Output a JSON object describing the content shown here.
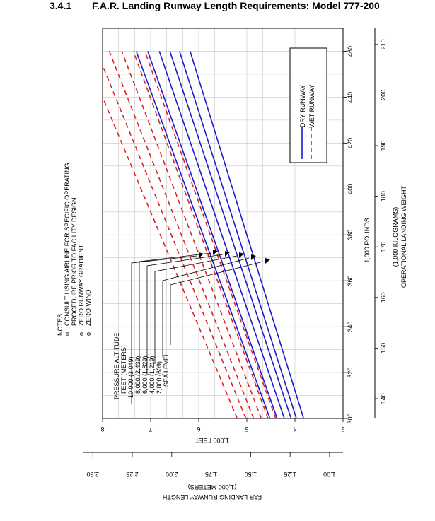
{
  "header": {
    "section_number": "3.4.1",
    "title": "F.A.R. Landing Runway Length Requirements: Model 777-200"
  },
  "notes": {
    "heading": "NOTES:",
    "items": [
      "CONSULT USING AIRLINE FOR SPECIFIC OPERATING",
      "PROCEDURE PRIOR TO FACILITY DESIGN",
      "ZERO RUNWAY GRADIENT",
      "ZERO WIND"
    ],
    "bullet": "o"
  },
  "legend": {
    "entries": [
      {
        "label": "DRY RUNWAY",
        "color": "#1a1ad0",
        "style": "solid"
      },
      {
        "label": "WET RUNWAY",
        "color": "#e02020",
        "style": "dashed"
      }
    ]
  },
  "altitude_legend": {
    "line1": "PRESSURE ALTITUDE",
    "line2": "FEET (METERS)",
    "rows": [
      "10,000 (3,049)",
      "8,000  (2,439)",
      "6,000  (1,829)",
      "4,000  (1,219)",
      "2,000   (609)",
      "SEA LEVEL"
    ]
  },
  "axes": {
    "weight_lb_label": "1,000 POUNDS",
    "weight_kg_label": "(1,000 KILOGRAMS)",
    "weight_title": "OPERATIONAL LANDING WEIGHT",
    "length_ft_label": "1,000 FEET",
    "length_m_label": "(1,000 METERS)",
    "length_title": "FAR LANDING RUNWAY LENGTH",
    "lb_ticks": [
      "300",
      "320",
      "340",
      "360",
      "380",
      "400",
      "420",
      "440",
      "460"
    ],
    "kg_ticks": [
      "140",
      "150",
      "160",
      "170",
      "180",
      "190",
      "200",
      "210"
    ],
    "ft_ticks": [
      "3",
      "4",
      "5",
      "6",
      "7",
      "8"
    ],
    "m_ticks": [
      "1.00",
      "1.25",
      "1.50",
      "1.75",
      "2.00",
      "2.25",
      "2.50"
    ]
  },
  "chart_data": {
    "type": "line",
    "title": "F.A.R. Landing Runway Length Requirements: Model 777-200",
    "xlabel": "OPERATIONAL LANDING WEIGHT (1,000 POUNDS)",
    "ylabel": "FAR LANDING RUNWAY LENGTH (1,000 FEET)",
    "xlim": [
      300,
      470
    ],
    "ylim": [
      3,
      8
    ],
    "grid": true,
    "legend_position": "top-right",
    "series": [
      {
        "name": "DRY RUNWAY SEA LEVEL",
        "condition": "dry",
        "x": [
          300,
          460
        ],
        "y": [
          3.82,
          6.18
        ]
      },
      {
        "name": "DRY RUNWAY 2,000 (609)",
        "condition": "dry",
        "x": [
          300,
          460
        ],
        "y": [
          3.97,
          6.4
        ]
      },
      {
        "name": "DRY RUNWAY 4,000 (1,219)",
        "condition": "dry",
        "x": [
          300,
          460
        ],
        "y": [
          4.08,
          6.6
        ]
      },
      {
        "name": "DRY RUNWAY 6,000 (1,829)",
        "condition": "dry",
        "x": [
          300,
          460
        ],
        "y": [
          4.22,
          6.82
        ]
      },
      {
        "name": "DRY RUNWAY 8,000 (2,439)",
        "condition": "dry",
        "x": [
          300,
          460
        ],
        "y": [
          4.37,
          7.06
        ]
      },
      {
        "name": "DRY RUNWAY 10,000 (3,049)",
        "condition": "dry",
        "x": [
          300,
          460
        ],
        "y": [
          4.52,
          7.3
        ]
      },
      {
        "name": "WET RUNWAY SEA LEVEL",
        "condition": "wet",
        "x": [
          300,
          460
        ],
        "y": [
          4.4,
          7.12
        ]
      },
      {
        "name": "WET RUNWAY 2,000 (609)",
        "condition": "wet",
        "x": [
          300,
          460
        ],
        "y": [
          4.56,
          7.36
        ]
      },
      {
        "name": "WET RUNWAY 4,000 (1,219)",
        "condition": "wet",
        "x": [
          300,
          460
        ],
        "y": [
          4.7,
          7.6
        ]
      },
      {
        "name": "WET RUNWAY 6,000 (1,829)",
        "condition": "wet",
        "x": [
          300,
          460
        ],
        "y": [
          4.86,
          7.86
        ]
      },
      {
        "name": "WET RUNWAY 8,000 (2,439)",
        "condition": "wet",
        "x": [
          300,
          460
        ],
        "y": [
          5.02,
          8.12
        ]
      },
      {
        "name": "WET RUNWAY 10,000 (3,049)",
        "condition": "wet",
        "x": [
          300,
          460
        ],
        "y": [
          5.2,
          8.4
        ]
      }
    ]
  }
}
